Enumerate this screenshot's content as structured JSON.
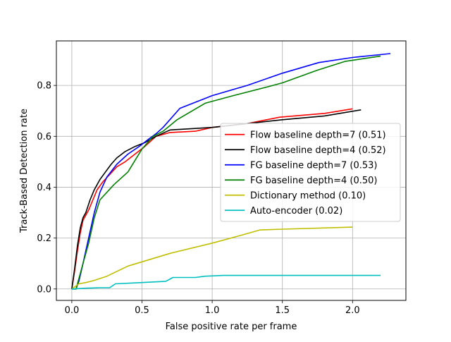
{
  "chart_data": {
    "type": "line",
    "title": "",
    "xlabel": "False positive rate per frame",
    "ylabel": "Track-Based Detection rate",
    "xlim": [
      -0.11,
      2.38
    ],
    "ylim": [
      -0.045,
      0.975
    ],
    "xticks": [
      0.0,
      0.5,
      1.0,
      1.5,
      2.0
    ],
    "xtick_labels": [
      "0.0",
      "0.5",
      "1.0",
      "1.5",
      "2.0"
    ],
    "yticks": [
      0.0,
      0.2,
      0.4,
      0.6,
      0.8
    ],
    "ytick_labels": [
      "0.0",
      "0.2",
      "0.4",
      "0.6",
      "0.8"
    ],
    "grid": true,
    "legend_position": "center-right",
    "series": [
      {
        "name": "Flow baseline depth=7 (0.51)",
        "color": "#ff0000",
        "points": [
          [
            0.0,
            0.0
          ],
          [
            0.02,
            0.07
          ],
          [
            0.04,
            0.15
          ],
          [
            0.06,
            0.22
          ],
          [
            0.08,
            0.27
          ],
          [
            0.12,
            0.31
          ],
          [
            0.15,
            0.35
          ],
          [
            0.18,
            0.39
          ],
          [
            0.22,
            0.42
          ],
          [
            0.27,
            0.45
          ],
          [
            0.32,
            0.48
          ],
          [
            0.38,
            0.5
          ],
          [
            0.45,
            0.53
          ],
          [
            0.52,
            0.56
          ],
          [
            0.6,
            0.6
          ],
          [
            0.7,
            0.615
          ],
          [
            0.88,
            0.62
          ],
          [
            1.0,
            0.635
          ],
          [
            1.25,
            0.65
          ],
          [
            1.48,
            0.675
          ],
          [
            1.8,
            0.69
          ],
          [
            2.0,
            0.708
          ]
        ]
      },
      {
        "name": "Flow baseline depth=4 (0.52)",
        "color": "#000000",
        "points": [
          [
            0.0,
            0.0
          ],
          [
            0.02,
            0.08
          ],
          [
            0.04,
            0.17
          ],
          [
            0.06,
            0.24
          ],
          [
            0.08,
            0.28
          ],
          [
            0.1,
            0.3
          ],
          [
            0.13,
            0.35
          ],
          [
            0.16,
            0.39
          ],
          [
            0.2,
            0.43
          ],
          [
            0.24,
            0.46
          ],
          [
            0.28,
            0.49
          ],
          [
            0.32,
            0.515
          ],
          [
            0.38,
            0.54
          ],
          [
            0.45,
            0.56
          ],
          [
            0.52,
            0.575
          ],
          [
            0.6,
            0.6
          ],
          [
            0.7,
            0.625
          ],
          [
            1.0,
            0.635
          ],
          [
            1.5,
            0.665
          ],
          [
            1.8,
            0.68
          ],
          [
            2.06,
            0.704
          ]
        ]
      },
      {
        "name": "FG baseline depth=7 (0.53)",
        "color": "#0000ff",
        "points": [
          [
            0.0,
            0.0
          ],
          [
            0.03,
            0.0
          ],
          [
            0.05,
            0.03
          ],
          [
            0.08,
            0.1
          ],
          [
            0.12,
            0.2
          ],
          [
            0.16,
            0.3
          ],
          [
            0.2,
            0.38
          ],
          [
            0.25,
            0.44
          ],
          [
            0.32,
            0.49
          ],
          [
            0.4,
            0.53
          ],
          [
            0.48,
            0.56
          ],
          [
            0.55,
            0.59
          ],
          [
            0.6,
            0.61
          ],
          [
            0.65,
            0.635
          ],
          [
            0.77,
            0.71
          ],
          [
            1.0,
            0.76
          ],
          [
            1.25,
            0.8
          ],
          [
            1.5,
            0.848
          ],
          [
            1.76,
            0.89
          ],
          [
            2.0,
            0.91
          ],
          [
            2.27,
            0.925
          ]
        ]
      },
      {
        "name": "FG baseline depth=4 (0.50)",
        "color": "#008000",
        "points": [
          [
            0.0,
            0.0
          ],
          [
            0.03,
            0.0
          ],
          [
            0.05,
            0.04
          ],
          [
            0.08,
            0.1
          ],
          [
            0.12,
            0.18
          ],
          [
            0.16,
            0.28
          ],
          [
            0.2,
            0.35
          ],
          [
            0.25,
            0.38
          ],
          [
            0.3,
            0.41
          ],
          [
            0.4,
            0.46
          ],
          [
            0.5,
            0.55
          ],
          [
            0.58,
            0.6
          ],
          [
            0.65,
            0.62
          ],
          [
            0.75,
            0.665
          ],
          [
            0.95,
            0.73
          ],
          [
            1.15,
            0.76
          ],
          [
            1.4,
            0.795
          ],
          [
            1.5,
            0.81
          ],
          [
            1.75,
            0.86
          ],
          [
            1.95,
            0.895
          ],
          [
            2.2,
            0.915
          ]
        ]
      },
      {
        "name": "Dictionary method (0.10)",
        "color": "#bfbf00",
        "points": [
          [
            0.0,
            0.0
          ],
          [
            0.05,
            0.02
          ],
          [
            0.1,
            0.025
          ],
          [
            0.15,
            0.032
          ],
          [
            0.25,
            0.05
          ],
          [
            0.4,
            0.09
          ],
          [
            0.7,
            0.14
          ],
          [
            1.0,
            0.18
          ],
          [
            1.2,
            0.21
          ],
          [
            1.34,
            0.232
          ],
          [
            1.5,
            0.235
          ],
          [
            2.0,
            0.243
          ]
        ]
      },
      {
        "name": "Auto-encoder (0.02)",
        "color": "#00bfbf",
        "points": [
          [
            0.0,
            0.0
          ],
          [
            0.1,
            0.003
          ],
          [
            0.2,
            0.005
          ],
          [
            0.27,
            0.005
          ],
          [
            0.31,
            0.02
          ],
          [
            0.5,
            0.025
          ],
          [
            0.67,
            0.03
          ],
          [
            0.72,
            0.045
          ],
          [
            0.88,
            0.045
          ],
          [
            0.95,
            0.05
          ],
          [
            1.08,
            0.053
          ],
          [
            1.5,
            0.053
          ],
          [
            2.2,
            0.053
          ]
        ]
      }
    ]
  }
}
